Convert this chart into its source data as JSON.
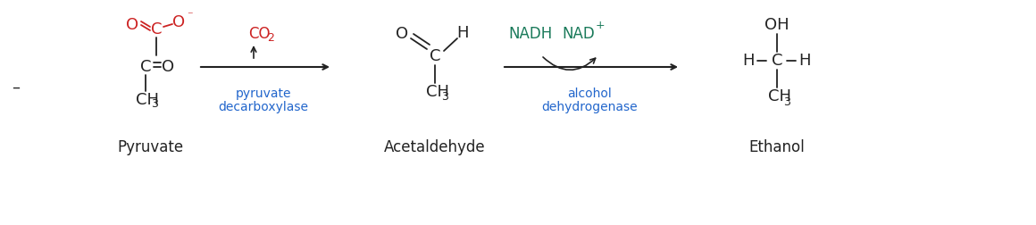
{
  "bg_color": "#ffffff",
  "red": "#cc2222",
  "blue": "#2266cc",
  "green": "#1a7a5a",
  "black": "#222222",
  "pyruvate_label": "Pyruvate",
  "acetaldehyde_label": "Acetaldehyde",
  "ethanol_label": "Ethanol",
  "enzyme1_line1": "pyruvate",
  "enzyme1_line2": "decarboxylase",
  "enzyme2_line1": "alcohol",
  "enzyme2_line2": "dehydrogenase",
  "nadh": "NADH",
  "nad_plus": "NAD",
  "nad_superscript": "+",
  "figsize": [
    11.6,
    2.52
  ],
  "dpi": 100
}
